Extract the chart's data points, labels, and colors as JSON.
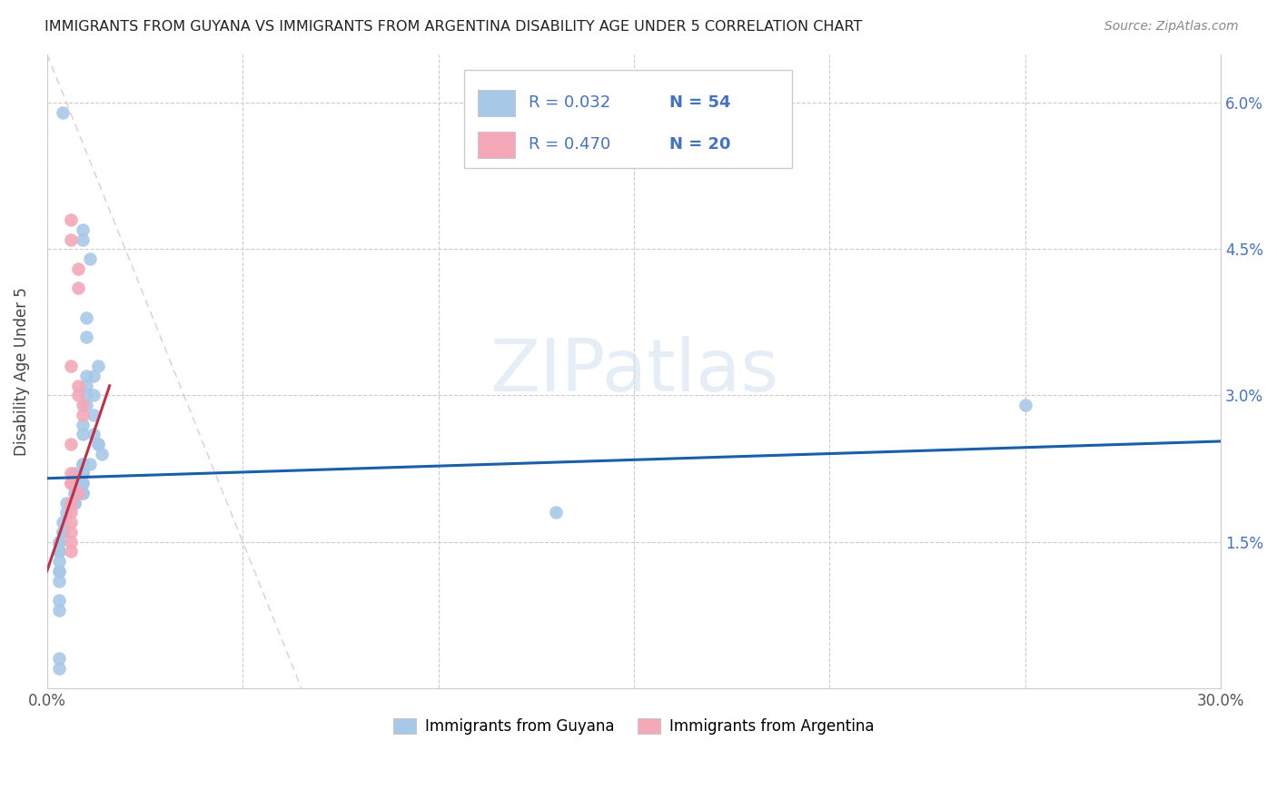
{
  "title": "IMMIGRANTS FROM GUYANA VS IMMIGRANTS FROM ARGENTINA DISABILITY AGE UNDER 5 CORRELATION CHART",
  "source": "Source: ZipAtlas.com",
  "ylabel": "Disability Age Under 5",
  "xmin": 0.0,
  "xmax": 0.3,
  "ymin": 0.0,
  "ymax": 0.065,
  "xticks": [
    0.0,
    0.05,
    0.1,
    0.15,
    0.2,
    0.25,
    0.3
  ],
  "yticks": [
    0.0,
    0.015,
    0.03,
    0.045,
    0.06
  ],
  "yticklabels": [
    "",
    "1.5%",
    "3.0%",
    "4.5%",
    "6.0%"
  ],
  "guyana_color": "#a8c8e8",
  "argentina_color": "#f4a8b8",
  "guyana_R": 0.032,
  "guyana_N": 54,
  "argentina_R": 0.47,
  "argentina_N": 20,
  "legend_text_color": "#4472c4",
  "watermark": "ZIPatlas",
  "guyana_points": [
    [
      0.004,
      0.059
    ],
    [
      0.009,
      0.047
    ],
    [
      0.009,
      0.046
    ],
    [
      0.011,
      0.044
    ],
    [
      0.01,
      0.038
    ],
    [
      0.01,
      0.036
    ],
    [
      0.013,
      0.033
    ],
    [
      0.012,
      0.032
    ],
    [
      0.01,
      0.032
    ],
    [
      0.01,
      0.031
    ],
    [
      0.01,
      0.03
    ],
    [
      0.012,
      0.03
    ],
    [
      0.01,
      0.029
    ],
    [
      0.012,
      0.028
    ],
    [
      0.009,
      0.027
    ],
    [
      0.009,
      0.026
    ],
    [
      0.012,
      0.026
    ],
    [
      0.013,
      0.025
    ],
    [
      0.013,
      0.025
    ],
    [
      0.014,
      0.024
    ],
    [
      0.009,
      0.023
    ],
    [
      0.011,
      0.023
    ],
    [
      0.009,
      0.023
    ],
    [
      0.009,
      0.022
    ],
    [
      0.007,
      0.022
    ],
    [
      0.009,
      0.022
    ],
    [
      0.009,
      0.021
    ],
    [
      0.009,
      0.021
    ],
    [
      0.007,
      0.021
    ],
    [
      0.007,
      0.02
    ],
    [
      0.009,
      0.02
    ],
    [
      0.007,
      0.02
    ],
    [
      0.009,
      0.02
    ],
    [
      0.007,
      0.019
    ],
    [
      0.005,
      0.019
    ],
    [
      0.007,
      0.019
    ],
    [
      0.005,
      0.018
    ],
    [
      0.004,
      0.017
    ],
    [
      0.004,
      0.016
    ],
    [
      0.004,
      0.016
    ],
    [
      0.003,
      0.015
    ],
    [
      0.003,
      0.015
    ],
    [
      0.003,
      0.014
    ],
    [
      0.003,
      0.014
    ],
    [
      0.003,
      0.013
    ],
    [
      0.003,
      0.012
    ],
    [
      0.003,
      0.012
    ],
    [
      0.003,
      0.011
    ],
    [
      0.003,
      0.009
    ],
    [
      0.003,
      0.008
    ],
    [
      0.003,
      0.003
    ],
    [
      0.003,
      0.002
    ],
    [
      0.25,
      0.029
    ],
    [
      0.13,
      0.018
    ]
  ],
  "argentina_points": [
    [
      0.006,
      0.048
    ],
    [
      0.006,
      0.046
    ],
    [
      0.008,
      0.043
    ],
    [
      0.008,
      0.041
    ],
    [
      0.006,
      0.033
    ],
    [
      0.008,
      0.031
    ],
    [
      0.008,
      0.03
    ],
    [
      0.009,
      0.029
    ],
    [
      0.009,
      0.028
    ],
    [
      0.006,
      0.025
    ],
    [
      0.006,
      0.022
    ],
    [
      0.006,
      0.021
    ],
    [
      0.006,
      0.021
    ],
    [
      0.008,
      0.02
    ],
    [
      0.006,
      0.019
    ],
    [
      0.006,
      0.018
    ],
    [
      0.006,
      0.017
    ],
    [
      0.006,
      0.016
    ],
    [
      0.006,
      0.015
    ],
    [
      0.006,
      0.014
    ]
  ],
  "guyana_line_color": "#1a5fa8",
  "argentina_line_color": "#c0304a",
  "guyana_line": {
    "x0": 0.0,
    "y0": 0.0215,
    "x1": 0.3,
    "y1": 0.0253
  },
  "argentina_line": {
    "x0": 0.0,
    "y0": 0.012,
    "x1": 0.016,
    "y1": 0.031
  },
  "diag_line": {
    "x0": 0.0,
    "y0": 0.065,
    "x1": 0.065,
    "y1": 0.0
  }
}
